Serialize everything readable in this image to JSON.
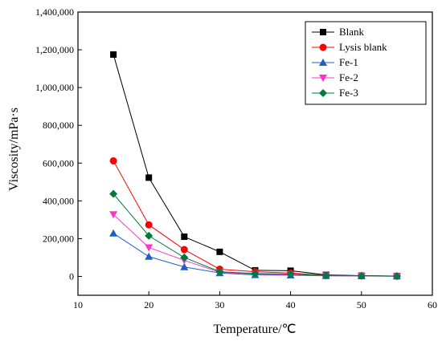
{
  "chart_data": {
    "type": "line",
    "xlabel": "Temperature/℃",
    "ylabel": "Viscosity/mPa·s",
    "xlim": [
      10,
      60
    ],
    "ylim": [
      -100000,
      1400000
    ],
    "x_ticks": [
      10,
      20,
      30,
      40,
      50,
      60
    ],
    "x_tick_labels": [
      "10",
      "20",
      "30",
      "40",
      "50",
      "60"
    ],
    "y_ticks": [
      0,
      200000,
      400000,
      600000,
      800000,
      1000000,
      1200000,
      1400000
    ],
    "y_tick_labels": [
      "0",
      "200,000",
      "400,000",
      "600,000",
      "800,000",
      "1,000,000",
      "1,200,000",
      "1,400,000"
    ],
    "grid": false,
    "legend_position": "top-right",
    "x": [
      15,
      20,
      25,
      30,
      35,
      40,
      45,
      50,
      55
    ],
    "series": [
      {
        "name": "Blank",
        "marker": "square",
        "color": "#000000",
        "values": [
          1175000,
          523000,
          210000,
          130000,
          32000,
          30000,
          8000,
          4000,
          2000
        ]
      },
      {
        "name": "Lysis blank",
        "marker": "circle",
        "color": "#ff0000",
        "values": [
          612000,
          273000,
          142000,
          38000,
          25000,
          18000,
          5000,
          3000,
          1500
        ]
      },
      {
        "name": "Fe-1",
        "marker": "triangle-up",
        "color": "#1f5fbf",
        "values": [
          228000,
          105000,
          50000,
          18000,
          8000,
          6000,
          3000,
          2000,
          1000
        ]
      },
      {
        "name": "Fe-2",
        "marker": "triangle-down",
        "color": "#ff33cc",
        "values": [
          328000,
          153000,
          85000,
          22000,
          12000,
          9000,
          4000,
          2500,
          1000
        ]
      },
      {
        "name": "Fe-3",
        "marker": "diamond",
        "color": "#007a3d",
        "values": [
          437000,
          215000,
          100000,
          25000,
          15000,
          12000,
          5000,
          3000,
          1500
        ]
      }
    ]
  }
}
